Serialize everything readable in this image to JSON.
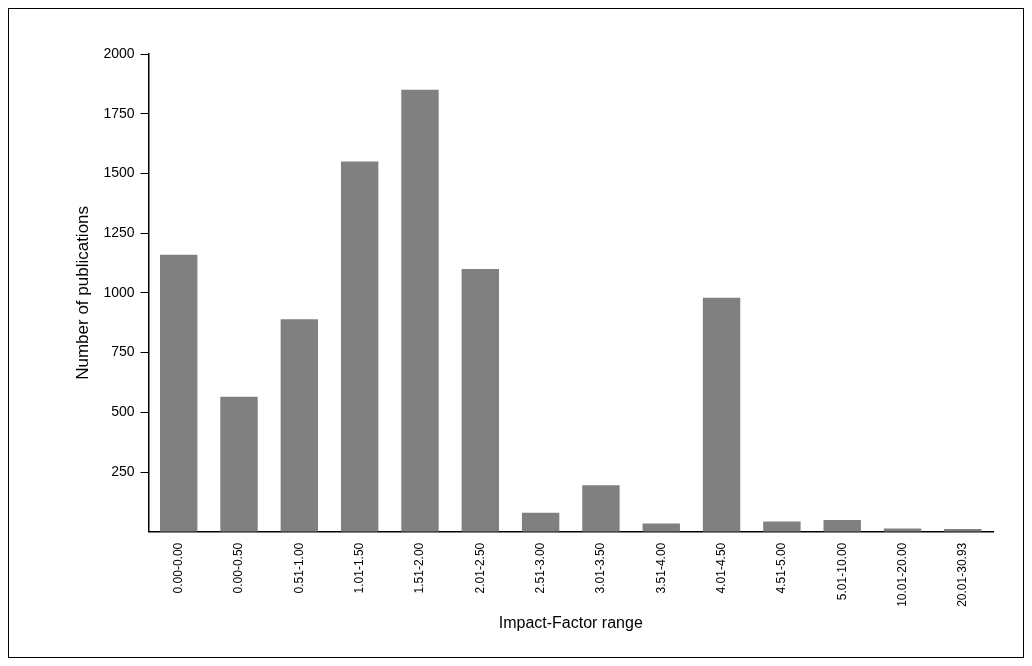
{
  "chart_data": {
    "type": "bar",
    "xlabel": "Impact-Factor range",
    "ylabel": "Number of publications",
    "categories": [
      "0.00-0.00",
      "0.00-0.50",
      "0.51-1.00",
      "1.01-1.50",
      "1.51-2.00",
      "2.01-2.50",
      "2.51-3.00",
      "3.01-3.50",
      "3.51-4.00",
      "4.01-4.50",
      "4.51-5.00",
      "5.01-10.00",
      "10.01-20.00",
      "20.01-30.93"
    ],
    "values": [
      1160,
      565,
      890,
      1550,
      1850,
      1100,
      80,
      195,
      35,
      980,
      43,
      49,
      14,
      11
    ],
    "color": "#808080",
    "ylim": [
      0,
      2000
    ],
    "yticks": [
      250,
      500,
      750,
      1000,
      1250,
      1500,
      1750,
      2000
    ],
    "grid": false,
    "legend": false
  }
}
